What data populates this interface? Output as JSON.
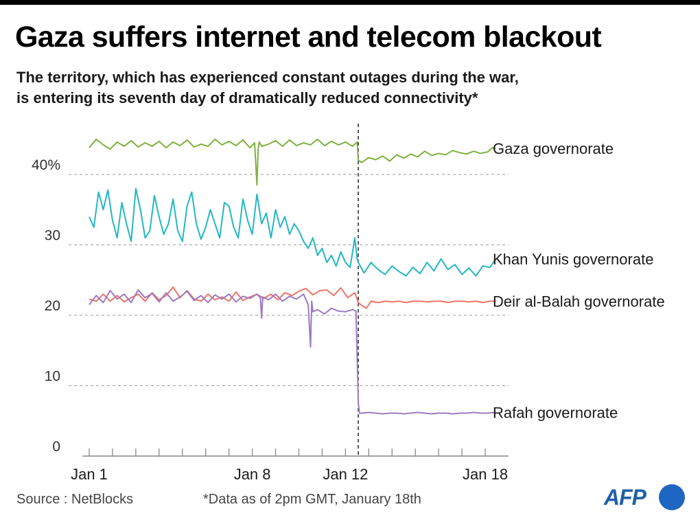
{
  "header": {
    "title": "Gaza suffers internet and telecom blackout",
    "subtitle_line1": "The territory, which has experienced constant outages during the war,",
    "subtitle_line2": "is entering its seventh day of dramatically reduced connectivity*"
  },
  "footer": {
    "source": "Source : NetBlocks",
    "note": "*Data as of 2pm GMT, January 18th",
    "logo": "AFP"
  },
  "colors": {
    "gaza": "#7fb13e",
    "khan_yunis": "#22b7c2",
    "deir_al_balah": "#f07468",
    "rafah": "#9b7ac4",
    "grid": "#9a9a9a",
    "axis": "#888888"
  },
  "chart_data": {
    "type": "line",
    "title": "Gaza suffers internet and telecom blackout",
    "xlabel": "",
    "ylabel": "",
    "x_unit": "date (January)",
    "xlim": [
      1,
      19
    ],
    "ylim": [
      0,
      46
    ],
    "y_ticks": [
      {
        "value": 0,
        "label": "0"
      },
      {
        "value": 10,
        "label": "10"
      },
      {
        "value": 20,
        "label": "20"
      },
      {
        "value": 30,
        "label": "30"
      },
      {
        "value": 40,
        "label": "40%"
      }
    ],
    "x_tick_labels": [
      {
        "value": 1,
        "label": "Jan 1"
      },
      {
        "value": 8,
        "label": "Jan 8"
      },
      {
        "value": 12,
        "label": "Jan 12"
      },
      {
        "value": 18,
        "label": "Jan 18"
      }
    ],
    "x_minor_ticks": [
      1,
      2,
      3,
      4,
      5,
      6,
      7,
      8,
      9,
      10,
      11,
      12,
      13,
      14,
      15,
      16,
      17,
      18
    ],
    "event_line_x": 12.55,
    "grid": "horizontal dashed",
    "series": [
      {
        "name": "Gaza governorate",
        "color_key": "gaza",
        "x": [
          1.0,
          1.3,
          1.6,
          1.9,
          2.2,
          2.5,
          2.8,
          3.1,
          3.4,
          3.7,
          4.0,
          4.3,
          4.6,
          4.9,
          5.2,
          5.5,
          5.8,
          6.1,
          6.4,
          6.7,
          7.0,
          7.3,
          7.6,
          7.9,
          8.1,
          8.2,
          8.25,
          8.3,
          8.4,
          8.7,
          9.0,
          9.3,
          9.6,
          9.9,
          10.2,
          10.5,
          10.8,
          11.1,
          11.4,
          11.7,
          12.0,
          12.3,
          12.5,
          12.55,
          12.7,
          13.0,
          13.3,
          13.6,
          13.9,
          14.2,
          14.5,
          14.8,
          15.1,
          15.4,
          15.7,
          16.0,
          16.3,
          16.6,
          16.9,
          17.2,
          17.5,
          17.8,
          18.1,
          18.3,
          18.45
        ],
        "y": [
          43.8,
          45.0,
          44.2,
          43.6,
          44.6,
          44.0,
          44.8,
          43.9,
          44.5,
          44.0,
          44.7,
          43.8,
          44.6,
          44.1,
          44.9,
          43.9,
          44.3,
          44.0,
          45.0,
          44.2,
          44.7,
          44.1,
          44.9,
          43.8,
          44.5,
          38.5,
          43.5,
          44.6,
          44.0,
          44.3,
          44.8,
          44.0,
          44.9,
          44.1,
          44.5,
          44.2,
          45.0,
          44.1,
          44.7,
          44.2,
          44.6,
          44.0,
          44.6,
          42.0,
          41.7,
          42.4,
          42.1,
          42.6,
          41.9,
          42.8,
          42.3,
          42.9,
          42.5,
          43.3,
          42.7,
          43.0,
          42.8,
          43.4,
          43.1,
          42.9,
          43.3,
          43.0,
          43.2,
          43.8,
          43.7
        ]
      },
      {
        "name": "Khan Yunis governorate",
        "color_key": "khan_yunis",
        "x": [
          1.0,
          1.2,
          1.4,
          1.6,
          1.8,
          2.0,
          2.2,
          2.4,
          2.6,
          2.8,
          3.0,
          3.2,
          3.4,
          3.6,
          3.8,
          4.0,
          4.2,
          4.4,
          4.6,
          4.8,
          5.0,
          5.2,
          5.4,
          5.6,
          5.8,
          6.0,
          6.2,
          6.4,
          6.6,
          6.8,
          7.0,
          7.2,
          7.4,
          7.6,
          7.8,
          8.0,
          8.2,
          8.4,
          8.6,
          8.8,
          9.0,
          9.2,
          9.4,
          9.6,
          9.8,
          10.0,
          10.2,
          10.4,
          10.6,
          10.8,
          11.0,
          11.2,
          11.4,
          11.6,
          11.8,
          12.0,
          12.2,
          12.4,
          12.5,
          12.55,
          12.8,
          13.1,
          13.4,
          13.7,
          14.0,
          14.3,
          14.6,
          14.9,
          15.2,
          15.5,
          15.8,
          16.1,
          16.4,
          16.7,
          17.0,
          17.3,
          17.6,
          17.9,
          18.2,
          18.45
        ],
        "y": [
          34.0,
          32.5,
          37.5,
          35.0,
          37.8,
          33.5,
          31.0,
          36.0,
          33.0,
          30.5,
          38.0,
          35.0,
          31.0,
          32.0,
          37.0,
          34.0,
          31.5,
          33.0,
          36.5,
          32.0,
          30.5,
          35.5,
          37.5,
          33.0,
          30.8,
          32.5,
          35.0,
          33.0,
          31.0,
          36.0,
          35.5,
          32.5,
          31.0,
          36.5,
          33.5,
          31.5,
          37.2,
          33.0,
          34.5,
          31.0,
          35.0,
          32.5,
          34.0,
          31.5,
          33.0,
          32.0,
          30.5,
          29.5,
          31.0,
          28.5,
          29.5,
          27.5,
          28.5,
          27.0,
          29.0,
          27.5,
          26.8,
          31.0,
          28.0,
          27.5,
          26.0,
          27.5,
          26.5,
          25.8,
          27.0,
          26.2,
          25.6,
          26.8,
          25.9,
          27.5,
          26.3,
          28.0,
          26.5,
          27.2,
          25.8,
          26.7,
          25.6,
          27.0,
          26.8,
          28.0
        ]
      },
      {
        "name": "Deir al-Balah governorate",
        "color_key": "deir_al_balah",
        "x": [
          1.0,
          1.3,
          1.6,
          1.9,
          2.2,
          2.5,
          2.8,
          3.1,
          3.4,
          3.7,
          4.0,
          4.3,
          4.6,
          4.9,
          5.2,
          5.5,
          5.8,
          6.1,
          6.4,
          6.7,
          7.0,
          7.3,
          7.6,
          7.9,
          8.2,
          8.5,
          8.8,
          9.1,
          9.4,
          9.7,
          10.0,
          10.3,
          10.6,
          10.9,
          11.2,
          11.5,
          11.8,
          12.1,
          12.4,
          12.55,
          12.7,
          12.9,
          13.1,
          13.4,
          13.7,
          14.0,
          14.3,
          14.6,
          14.9,
          15.2,
          15.5,
          15.8,
          16.1,
          16.4,
          16.7,
          17.0,
          17.3,
          17.6,
          17.9,
          18.2,
          18.45
        ],
        "y": [
          22.3,
          22.0,
          23.0,
          22.0,
          22.8,
          21.9,
          22.5,
          23.0,
          22.0,
          23.2,
          22.2,
          22.8,
          24.0,
          22.5,
          23.5,
          22.3,
          22.0,
          23.0,
          22.2,
          22.6,
          22.0,
          23.3,
          22.1,
          22.6,
          23.0,
          22.4,
          23.0,
          22.2,
          23.2,
          22.8,
          23.4,
          23.8,
          22.9,
          23.5,
          23.6,
          22.8,
          23.9,
          22.5,
          23.2,
          21.8,
          21.4,
          21.0,
          22.0,
          21.8,
          22.0,
          21.9,
          22.0,
          21.8,
          22.0,
          22.0,
          21.9,
          22.0,
          22.0,
          21.8,
          22.0,
          22.0,
          21.9,
          22.0,
          21.8,
          22.0,
          22.0
        ]
      },
      {
        "name": "Rafah governorate",
        "color_key": "rafah",
        "x": [
          1.0,
          1.3,
          1.6,
          1.9,
          2.2,
          2.5,
          2.8,
          3.1,
          3.4,
          3.7,
          4.0,
          4.3,
          4.6,
          4.9,
          5.2,
          5.5,
          5.8,
          6.1,
          6.4,
          6.7,
          7.0,
          7.3,
          7.6,
          7.9,
          8.2,
          8.35,
          8.4,
          8.45,
          8.7,
          9.0,
          9.3,
          9.6,
          9.9,
          10.2,
          10.4,
          10.5,
          10.55,
          10.6,
          10.8,
          11.1,
          11.4,
          11.7,
          12.0,
          12.3,
          12.45,
          12.52,
          12.55,
          12.6,
          12.7,
          13.0,
          13.3,
          13.6,
          13.9,
          14.2,
          14.5,
          14.8,
          15.1,
          15.4,
          15.7,
          16.0,
          16.3,
          16.6,
          16.9,
          17.2,
          17.5,
          17.8,
          18.1,
          18.45
        ],
        "y": [
          21.5,
          22.8,
          21.8,
          23.5,
          22.3,
          23.0,
          21.8,
          23.6,
          22.5,
          23.1,
          21.9,
          23.2,
          22.0,
          22.6,
          23.4,
          22.1,
          22.8,
          21.8,
          22.9,
          22.3,
          23.0,
          21.9,
          22.7,
          22.4,
          23.0,
          22.5,
          19.6,
          22.6,
          22.2,
          23.0,
          22.0,
          22.7,
          22.3,
          23.0,
          21.5,
          15.5,
          22.0,
          20.5,
          20.8,
          20.2,
          21.0,
          20.6,
          20.5,
          20.8,
          20.6,
          12.0,
          7.5,
          6.1,
          6.1,
          6.2,
          6.1,
          6.0,
          6.1,
          6.1,
          6.0,
          6.1,
          6.2,
          6.1,
          6.0,
          6.1,
          6.1,
          6.0,
          6.1,
          6.1,
          6.2,
          6.1,
          6.1,
          6.2
        ]
      }
    ],
    "line_labels": [
      {
        "series": "Gaza governorate",
        "text": "Gaza governorate"
      },
      {
        "series": "Khan Yunis governorate",
        "text": "Khan Yunis governorate"
      },
      {
        "series": "Deir al-Balah governorate",
        "text": "Deir al-Balah governorate"
      },
      {
        "series": "Rafah governorate",
        "text": "Rafah governorate"
      }
    ]
  }
}
